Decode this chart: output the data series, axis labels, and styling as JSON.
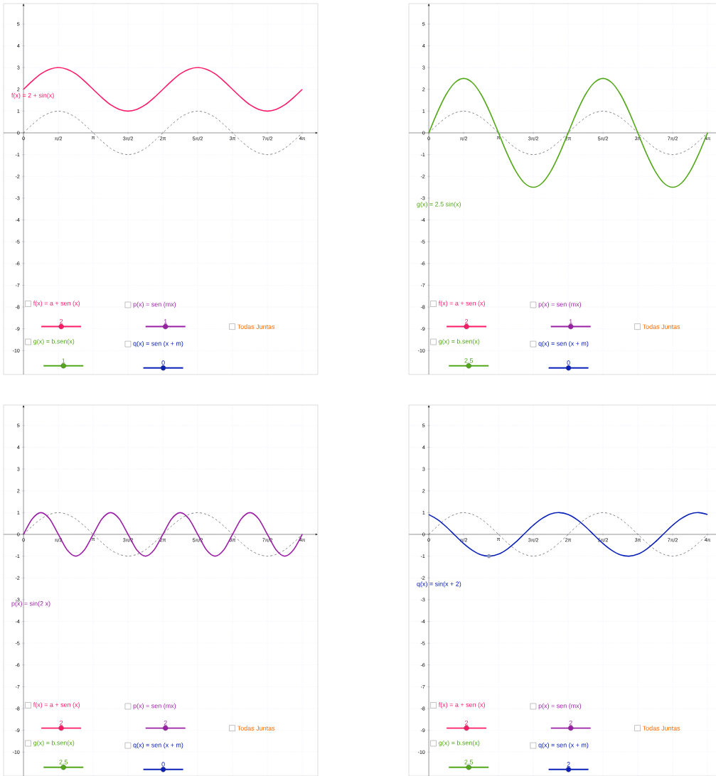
{
  "chart_data": [
    {
      "type": "line",
      "xlim": [
        -0.9,
        13.27
      ],
      "ylim": [
        -11.1,
        5.94
      ],
      "grid": true,
      "x": [
        0,
        0.3927,
        0.7854,
        1.1781,
        1.5708,
        1.9635,
        2.3562,
        2.7489,
        3.1416,
        3.5343,
        3.927,
        4.3197,
        4.7124,
        5.1051,
        5.4978,
        5.8905,
        6.2832,
        6.6759,
        7.0686,
        7.4613,
        7.854,
        8.2467,
        8.6394,
        9.0321,
        9.4248,
        9.8175,
        10.2102,
        10.6029,
        10.9956,
        11.3883,
        11.781,
        12.1737,
        12.5664
      ],
      "xticks": [
        {
          "value": 0,
          "label": "0"
        },
        {
          "value": 1.5708,
          "label": "π/2"
        },
        {
          "value": 3.1416,
          "label": "π"
        },
        {
          "value": 4.7124,
          "label": "3π/2"
        },
        {
          "value": 6.2832,
          "label": "2π"
        },
        {
          "value": 7.854,
          "label": "5π/2"
        },
        {
          "value": 9.4248,
          "label": "3π"
        },
        {
          "value": 10.9956,
          "label": "7π/2"
        },
        {
          "value": 12.5664,
          "label": "4π"
        }
      ],
      "yticks": [
        -10,
        -9,
        -8,
        -7,
        -6,
        -5,
        -4,
        -3,
        -2,
        -1,
        0,
        1,
        2,
        3,
        4,
        5
      ],
      "series": [
        {
          "color": "#555555",
          "line_style": "dashed",
          "values": [
            0,
            0.38,
            0.71,
            0.92,
            1,
            0.92,
            0.71,
            0.38,
            0,
            -0.38,
            -0.71,
            -0.92,
            -1,
            -0.92,
            -0.71,
            -0.38,
            0,
            0.38,
            0.71,
            0.92,
            1,
            0.92,
            0.71,
            0.38,
            0,
            -0.38,
            -0.71,
            -0.92,
            -1,
            -0.92,
            -0.71,
            -0.38,
            0
          ]
        },
        {
          "name": "f(x) = 2 + sin(x)",
          "color": "#ff1a66",
          "line_style": "solid",
          "values": [
            2,
            2.38,
            2.71,
            2.92,
            3,
            2.92,
            2.71,
            2.38,
            2,
            1.62,
            1.29,
            1.08,
            1,
            1.08,
            1.29,
            1.62,
            2,
            2.38,
            2.71,
            2.92,
            3,
            2.92,
            2.71,
            2.38,
            2,
            1.62,
            1.29,
            1.08,
            1,
            1.08,
            1.29,
            1.62,
            2
          ]
        }
      ],
      "annotations": [
        "f(x) = a + sen (x)",
        "p(x) = sen (mx)",
        "Todas Juntas",
        "g(x) = b.sen(x)",
        "q(x) = sen (x + m)",
        "2",
        "1",
        "1",
        "0"
      ]
    },
    {
      "type": "line",
      "xlim": [
        -0.9,
        13.27
      ],
      "ylim": [
        -11.1,
        5.94
      ],
      "grid": true,
      "x": [
        0,
        0.3927,
        0.7854,
        1.1781,
        1.5708,
        1.9635,
        2.3562,
        2.7489,
        3.1416,
        3.5343,
        3.927,
        4.3197,
        4.7124,
        5.1051,
        5.4978,
        5.8905,
        6.2832,
        6.6759,
        7.0686,
        7.4613,
        7.854,
        8.2467,
        8.6394,
        9.0321,
        9.4248,
        9.8175,
        10.2102,
        10.6029,
        10.9956,
        11.3883,
        11.781,
        12.1737,
        12.5664
      ],
      "xticks": [
        {
          "value": 0,
          "label": "0"
        },
        {
          "value": 1.5708,
          "label": "π/2"
        },
        {
          "value": 3.1416,
          "label": "π"
        },
        {
          "value": 4.7124,
          "label": "3π/2"
        },
        {
          "value": 6.2832,
          "label": "2π"
        },
        {
          "value": 7.854,
          "label": "5π/2"
        },
        {
          "value": 9.4248,
          "label": "3π"
        },
        {
          "value": 10.9956,
          "label": "7π/2"
        },
        {
          "value": 12.5664,
          "label": "4π"
        }
      ],
      "yticks": [
        -10,
        -9,
        -8,
        -7,
        -6,
        -5,
        -4,
        -3,
        -2,
        -1,
        0,
        1,
        2,
        3,
        4,
        5
      ],
      "series": [
        {
          "color": "#555555",
          "line_style": "dashed",
          "values": [
            0,
            0.38,
            0.71,
            0.92,
            1,
            0.92,
            0.71,
            0.38,
            0,
            -0.38,
            -0.71,
            -0.92,
            -1,
            -0.92,
            -0.71,
            -0.38,
            0,
            0.38,
            0.71,
            0.92,
            1,
            0.92,
            0.71,
            0.38,
            0,
            -0.38,
            -0.71,
            -0.92,
            -1,
            -0.92,
            -0.71,
            -0.38,
            0
          ]
        },
        {
          "name": "g(x) = 2.5 sin(x)",
          "color": "#52a818",
          "line_style": "solid",
          "values": [
            0,
            0.96,
            1.77,
            2.31,
            2.5,
            2.31,
            1.77,
            0.96,
            0,
            -0.96,
            -1.77,
            -2.31,
            -2.5,
            -2.31,
            -1.77,
            -0.96,
            0,
            0.96,
            1.77,
            2.31,
            2.5,
            2.31,
            1.77,
            0.96,
            0,
            -0.96,
            -1.77,
            -2.31,
            -2.5,
            -2.31,
            -1.77,
            -0.96,
            0
          ]
        }
      ],
      "annotations": [
        "f(x) = a + sen (x)",
        "p(x) = sen (mx)",
        "Todas Juntas",
        "g(x) = b.sen(x)",
        "q(x) = sen (x + m)",
        "2",
        "1",
        "2.5",
        "0"
      ]
    },
    {
      "type": "line",
      "xlim": [
        -0.9,
        13.27
      ],
      "ylim": [
        -11.1,
        5.94
      ],
      "grid": true,
      "x": [
        0,
        0.3927,
        0.7854,
        1.1781,
        1.5708,
        1.9635,
        2.3562,
        2.7489,
        3.1416,
        3.5343,
        3.927,
        4.3197,
        4.7124,
        5.1051,
        5.4978,
        5.8905,
        6.2832,
        6.6759,
        7.0686,
        7.4613,
        7.854,
        8.2467,
        8.6394,
        9.0321,
        9.4248,
        9.8175,
        10.2102,
        10.6029,
        10.9956,
        11.3883,
        11.781,
        12.1737,
        12.5664
      ],
      "xticks": [
        {
          "value": 0,
          "label": "0"
        },
        {
          "value": 1.5708,
          "label": "π/2"
        },
        {
          "value": 3.1416,
          "label": "π"
        },
        {
          "value": 4.7124,
          "label": "3π/2"
        },
        {
          "value": 6.2832,
          "label": "2π"
        },
        {
          "value": 7.854,
          "label": "5π/2"
        },
        {
          "value": 9.4248,
          "label": "3π"
        },
        {
          "value": 10.9956,
          "label": "7π/2"
        },
        {
          "value": 12.5664,
          "label": "4π"
        }
      ],
      "yticks": [
        -10,
        -9,
        -8,
        -7,
        -6,
        -5,
        -4,
        -3,
        -2,
        -1,
        0,
        1,
        2,
        3,
        4,
        5
      ],
      "series": [
        {
          "color": "#555555",
          "line_style": "dashed",
          "values": [
            0,
            0.38,
            0.71,
            0.92,
            1,
            0.92,
            0.71,
            0.38,
            0,
            -0.38,
            -0.71,
            -0.92,
            -1,
            -0.92,
            -0.71,
            -0.38,
            0,
            0.38,
            0.71,
            0.92,
            1,
            0.92,
            0.71,
            0.38,
            0,
            -0.38,
            -0.71,
            -0.92,
            -1,
            -0.92,
            -0.71,
            -0.38,
            0
          ]
        },
        {
          "name": "p(x) = sin(2 x)",
          "color": "#9b1fa6",
          "line_style": "solid",
          "values": [
            0,
            0.71,
            1,
            0.71,
            0,
            -0.71,
            -1,
            -0.71,
            0,
            0.71,
            1,
            0.71,
            0,
            -0.71,
            -1,
            -0.71,
            0,
            0.71,
            1,
            0.71,
            0,
            -0.71,
            -1,
            -0.71,
            0,
            0.71,
            1,
            0.71,
            0,
            -0.71,
            -1,
            -0.71,
            0
          ]
        }
      ],
      "annotations": [
        "f(x) = a + sen (x)",
        "p(x) = sen (mx)",
        "Todas Juntas",
        "g(x) = b.sen(x)",
        "q(x) = sen (x + m)",
        "2",
        "2",
        "2.5",
        "0"
      ]
    },
    {
      "type": "line",
      "xlim": [
        -0.9,
        13.27
      ],
      "ylim": [
        -11.1,
        5.94
      ],
      "grid": true,
      "x": [
        0,
        0.3927,
        0.7854,
        1.1781,
        1.5708,
        1.9635,
        2.3562,
        2.7489,
        3.1416,
        3.5343,
        3.927,
        4.3197,
        4.7124,
        5.1051,
        5.4978,
        5.8905,
        6.2832,
        6.6759,
        7.0686,
        7.4613,
        7.854,
        8.2467,
        8.6394,
        9.0321,
        9.4248,
        9.8175,
        10.2102,
        10.6029,
        10.9956,
        11.3883,
        11.781,
        12.1737,
        12.5664
      ],
      "xticks": [
        {
          "value": 0,
          "label": "0"
        },
        {
          "value": 1.5708,
          "label": "π/2"
        },
        {
          "value": 3.1416,
          "label": "π"
        },
        {
          "value": 4.7124,
          "label": "3π/2"
        },
        {
          "value": 6.2832,
          "label": "2π"
        },
        {
          "value": 7.854,
          "label": "5π/2"
        },
        {
          "value": 9.4248,
          "label": "3π"
        },
        {
          "value": 10.9956,
          "label": "7π/2"
        },
        {
          "value": 12.5664,
          "label": "4π"
        }
      ],
      "yticks": [
        -10,
        -9,
        -8,
        -7,
        -6,
        -5,
        -4,
        -3,
        -2,
        -1,
        0,
        1,
        2,
        3,
        4,
        5
      ],
      "series": [
        {
          "color": "#555555",
          "line_style": "dashed",
          "values": [
            0,
            0.38,
            0.71,
            0.92,
            1,
            0.92,
            0.71,
            0.38,
            0,
            -0.38,
            -0.71,
            -0.92,
            -1,
            -0.92,
            -0.71,
            -0.38,
            0,
            0.38,
            0.71,
            0.92,
            1,
            0.92,
            0.71,
            0.38,
            0,
            -0.38,
            -0.71,
            -0.92,
            -1,
            -0.92,
            -0.71,
            -0.38,
            0
          ]
        },
        {
          "name": "q(x) = sin(x + 2)",
          "color": "#0a20b8",
          "line_style": "solid",
          "values": [
            0.91,
            0.68,
            0.35,
            -0.04,
            -0.42,
            -0.73,
            -0.94,
            -1,
            -0.91,
            -0.68,
            -0.35,
            0.04,
            0.42,
            0.73,
            0.94,
            1,
            0.91,
            0.68,
            0.35,
            -0.04,
            -0.42,
            -0.73,
            -0.94,
            -1,
            -0.91,
            -0.68,
            -0.35,
            0.04,
            0.42,
            0.73,
            0.94,
            1,
            0.91
          ]
        },
        {
          "type": "scatter",
          "marker": "circle",
          "color": "#8899cc",
          "x": [
            2.71
          ],
          "values": [
            -1
          ]
        }
      ],
      "annotations": [
        "f(x) = a + sen (x)",
        "p(x) = sen (mx)",
        "Todas Juntas",
        "g(x) = b.sen(x)",
        "q(x) = sen (x + m)",
        "2",
        "2",
        "2.5",
        "2"
      ]
    }
  ]
}
